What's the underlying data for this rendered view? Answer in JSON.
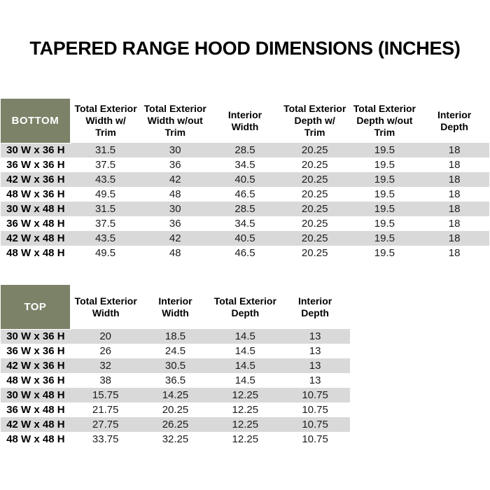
{
  "title": "TAPERED RANGE HOOD DIMENSIONS (INCHES)",
  "colors": {
    "header_cell_green": "#7b8268",
    "stripe_gray": "#d9d9d9",
    "title_black": "#000000",
    "header_text_white": "#ffffff"
  },
  "bottom_table": {
    "corner_label": "BOTTOM",
    "columns": [
      "Total Exterior\nWidth w/\nTrim",
      "Total Exterior\nWidth w/out\nTrim",
      "Interior\nWidth",
      "Total Exterior\nDepth w/\nTrim",
      "Total Exterior\nDepth w/out\nTrim",
      "Interior\nDepth"
    ],
    "rows": [
      {
        "label": "30 W x 36 H",
        "values": [
          "31.5",
          "30",
          "28.5",
          "20.25",
          "19.5",
          "18"
        ]
      },
      {
        "label": "36 W x 36 H",
        "values": [
          "37.5",
          "36",
          "34.5",
          "20.25",
          "19.5",
          "18"
        ]
      },
      {
        "label": "42 W x 36 H",
        "values": [
          "43.5",
          "42",
          "40.5",
          "20.25",
          "19.5",
          "18"
        ]
      },
      {
        "label": "48 W x 36 H",
        "values": [
          "49.5",
          "48",
          "46.5",
          "20.25",
          "19.5",
          "18"
        ]
      },
      {
        "label": "30 W x 48 H",
        "values": [
          "31.5",
          "30",
          "28.5",
          "20.25",
          "19.5",
          "18"
        ]
      },
      {
        "label": "36 W x 48 H",
        "values": [
          "37.5",
          "36",
          "34.5",
          "20.25",
          "19.5",
          "18"
        ]
      },
      {
        "label": "42 W x 48 H",
        "values": [
          "43.5",
          "42",
          "40.5",
          "20.25",
          "19.5",
          "18"
        ]
      },
      {
        "label": "48 W x 48 H",
        "values": [
          "49.5",
          "48",
          "46.5",
          "20.25",
          "19.5",
          "18"
        ]
      }
    ]
  },
  "top_table": {
    "corner_label": "TOP",
    "columns": [
      "Total Exterior\nWidth",
      "Interior\nWidth",
      "Total Exterior\nDepth",
      "Interior\nDepth"
    ],
    "rows": [
      {
        "label": "30 W x 36 H",
        "values": [
          "20",
          "18.5",
          "14.5",
          "13"
        ]
      },
      {
        "label": "36 W x 36 H",
        "values": [
          "26",
          "24.5",
          "14.5",
          "13"
        ]
      },
      {
        "label": "42 W x 36 H",
        "values": [
          "32",
          "30.5",
          "14.5",
          "13"
        ]
      },
      {
        "label": "48 W x 36 H",
        "values": [
          "38",
          "36.5",
          "14.5",
          "13"
        ]
      },
      {
        "label": "30 W x 48 H",
        "values": [
          "15.75",
          "14.25",
          "12.25",
          "10.75"
        ]
      },
      {
        "label": "36 W x 48 H",
        "values": [
          "21.75",
          "20.25",
          "12.25",
          "10.75"
        ]
      },
      {
        "label": "42 W x 48 H",
        "values": [
          "27.75",
          "26.25",
          "12.25",
          "10.75"
        ]
      },
      {
        "label": "48 W x 48 H",
        "values": [
          "33.75",
          "32.25",
          "12.25",
          "10.75"
        ]
      }
    ]
  }
}
